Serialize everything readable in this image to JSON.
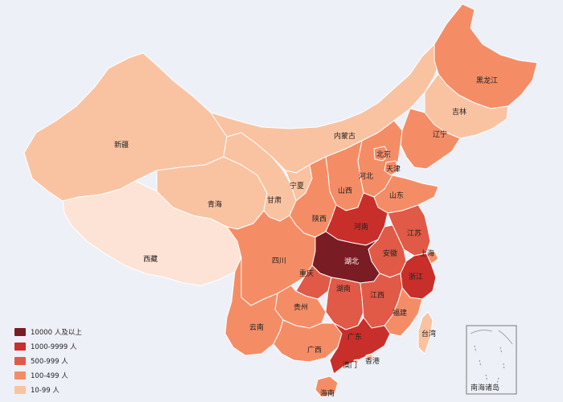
{
  "colors": {
    "tier_10000": "#7a1c24",
    "tier_1000": "#c92f2a",
    "tier_500": "#e05a47",
    "tier_100": "#f48d66",
    "tier_10": "#f9c3a2",
    "tier_lowest": "#fde3d5",
    "border": "#ffffff"
  },
  "legend": {
    "items": [
      {
        "label": "10000 人及以上",
        "tier": "tier_10000"
      },
      {
        "label": "1000-9999 人",
        "tier": "tier_1000"
      },
      {
        "label": "500-999 人",
        "tier": "tier_500"
      },
      {
        "label": "100-499 人",
        "tier": "tier_100"
      },
      {
        "label": "10-99 人",
        "tier": "tier_10"
      }
    ]
  },
  "provinces": [
    {
      "id": "xinjiang",
      "name": "新疆",
      "tier": "tier_10"
    },
    {
      "id": "xizang",
      "name": "西藏",
      "tier": "tier_lowest"
    },
    {
      "id": "qinghai",
      "name": "青海",
      "tier": "tier_10"
    },
    {
      "id": "gansu",
      "name": "甘肃",
      "tier": "tier_10"
    },
    {
      "id": "neimenggu",
      "name": "内蒙古",
      "tier": "tier_10"
    },
    {
      "id": "heilongjiang",
      "name": "黑龙江",
      "tier": "tier_100"
    },
    {
      "id": "jilin",
      "name": "吉林",
      "tier": "tier_10"
    },
    {
      "id": "liaoning",
      "name": "辽宁",
      "tier": "tier_100"
    },
    {
      "id": "beijing",
      "name": "北京",
      "tier": "tier_100"
    },
    {
      "id": "tianjin",
      "name": "天津",
      "tier": "tier_100"
    },
    {
      "id": "hebei",
      "name": "河北",
      "tier": "tier_100"
    },
    {
      "id": "shanxi",
      "name": "山西",
      "tier": "tier_100"
    },
    {
      "id": "shandong",
      "name": "山东",
      "tier": "tier_100"
    },
    {
      "id": "ningxia",
      "name": "宁夏",
      "tier": "tier_10"
    },
    {
      "id": "shaanxi",
      "name": "陕西",
      "tier": "tier_100"
    },
    {
      "id": "henan",
      "name": "河南",
      "tier": "tier_1000"
    },
    {
      "id": "jiangsu",
      "name": "江苏",
      "tier": "tier_500"
    },
    {
      "id": "anhui",
      "name": "安徽",
      "tier": "tier_500"
    },
    {
      "id": "shanghai",
      "name": "上海",
      "tier": "tier_100"
    },
    {
      "id": "hubei",
      "name": "湖北",
      "tier": "tier_10000"
    },
    {
      "id": "zhejiang",
      "name": "浙江",
      "tier": "tier_1000"
    },
    {
      "id": "sichuan",
      "name": "四川",
      "tier": "tier_100"
    },
    {
      "id": "chongqing",
      "name": "重庆",
      "tier": "tier_500"
    },
    {
      "id": "hunan",
      "name": "湖南",
      "tier": "tier_500"
    },
    {
      "id": "jiangxi",
      "name": "江西",
      "tier": "tier_500"
    },
    {
      "id": "guizhou",
      "name": "贵州",
      "tier": "tier_100"
    },
    {
      "id": "yunnan",
      "name": "云南",
      "tier": "tier_100"
    },
    {
      "id": "fujian",
      "name": "福建",
      "tier": "tier_100"
    },
    {
      "id": "guangxi",
      "name": "广西",
      "tier": "tier_100"
    },
    {
      "id": "guangdong",
      "name": "广东",
      "tier": "tier_1000"
    },
    {
      "id": "hainan",
      "name": "海南",
      "tier": "tier_100"
    },
    {
      "id": "taiwan",
      "name": "台湾",
      "tier": "tier_10"
    },
    {
      "id": "hongkong",
      "name": "香港",
      "tier": "tier_10"
    },
    {
      "id": "macau",
      "name": "澳门",
      "tier": "tier_10"
    }
  ],
  "inset": {
    "label": "南海诸岛"
  }
}
